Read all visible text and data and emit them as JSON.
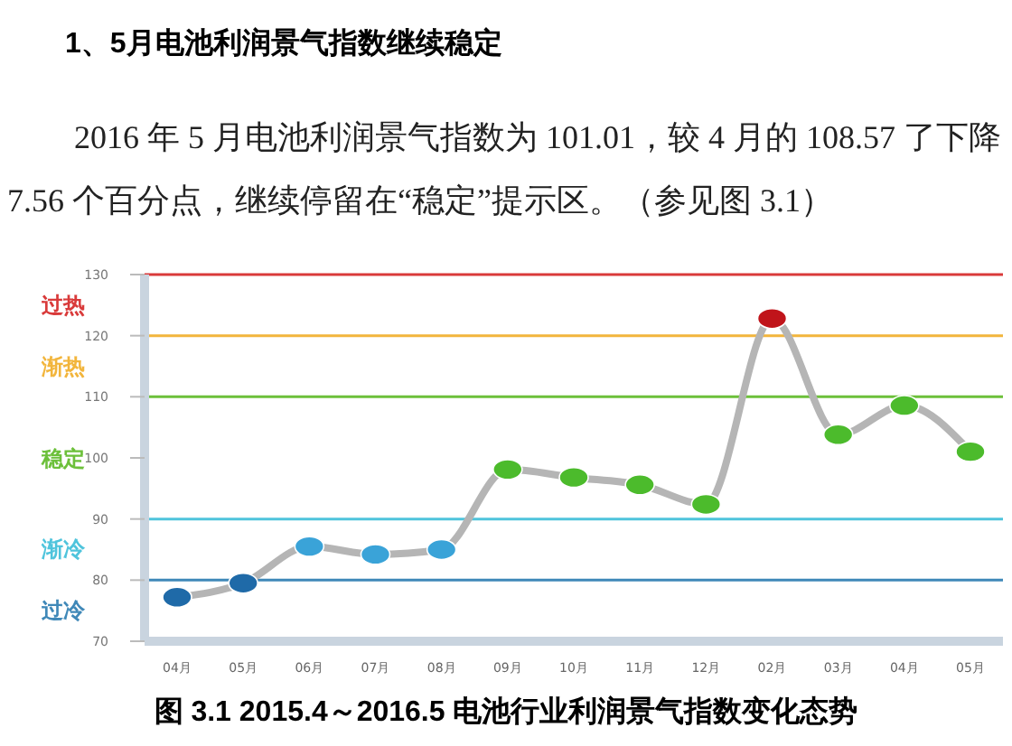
{
  "chart_data": {
    "type": "line",
    "title": "1、5月电池利润景气指数继续稳定",
    "subtitle": "2016 年 5 月电池利润景气指数为 101.01，较 4 月的 108.57 了下降 7.56 个百分点，继续停留在“稳定”提示区。（参见图 3.1）",
    "categories": [
      "04月",
      "05月",
      "06月",
      "07月",
      "08月",
      "09月",
      "10月",
      "11月",
      "12月",
      "02月",
      "03月",
      "04月",
      "05月"
    ],
    "series": [
      {
        "color": "#b5b5b5",
        "colors": [
          "#1f6aa8",
          "#1f6aa8",
          "#3aa3d8",
          "#3aa3d8",
          "#3aa3d8",
          "#4cbb2c",
          "#4cbb2c",
          "#4cbb2c",
          "#4cbb2c",
          "#c0141a",
          "#4cbb2c",
          "#4cbb2c",
          "#4cbb2c"
        ],
        "values": [
          77.2,
          79.5,
          85.5,
          84.2,
          85.0,
          98.1,
          96.8,
          95.6,
          92.4,
          122.8,
          103.8,
          108.57,
          101.01
        ]
      }
    ],
    "ylim": [
      70,
      130
    ],
    "yticks": [
      70,
      80,
      90,
      100,
      110,
      120,
      130
    ],
    "marker": "circle",
    "line_style": "solid",
    "ref_lines": [
      {
        "axis": "y",
        "value": 130,
        "color": "#d93a3a",
        "label": "过热"
      },
      {
        "axis": "y",
        "value": 120,
        "color": "#f2b53c",
        "label": "渐热"
      },
      {
        "axis": "y",
        "value": 110,
        "color": "#6cc03a",
        "label": "稳定"
      },
      {
        "axis": "y",
        "value": 90,
        "color": "#4fc4dc",
        "label": "渐冷"
      },
      {
        "axis": "y",
        "value": 80,
        "color": "#3f88b8",
        "label": "过冷"
      }
    ],
    "annotations": [
      "图 3.1 2015.4～2016.5 电池行业利润景气指数变化态势"
    ]
  }
}
